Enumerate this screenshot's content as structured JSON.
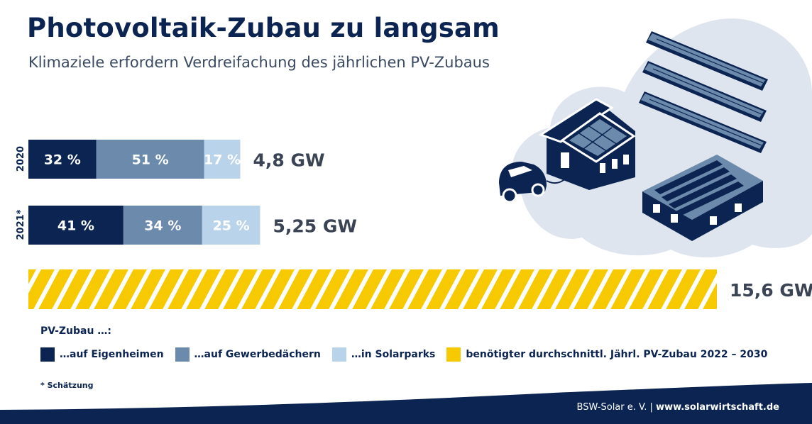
{
  "header": {
    "title": "Photovoltaik-Zubau zu langsam",
    "subtitle": "Klimaziele erfordern Verdreifachung des jährlichen PV-Zubaus"
  },
  "chart_data": {
    "type": "bar",
    "orientation": "horizontal",
    "stacked": true,
    "categories": [
      "2020",
      "2021*",
      ""
    ],
    "rows": [
      {
        "label": "2020",
        "total": 4.8,
        "total_label": "4,8 GW",
        "segments": [
          {
            "series": "…auf Eigenheimen",
            "value": 32,
            "label": "32 %"
          },
          {
            "series": "…auf Gewerbedächern",
            "value": 51,
            "label": "51 %"
          },
          {
            "series": "…in Solarparks",
            "value": 17,
            "label": "17 %"
          }
        ]
      },
      {
        "label": "2021*",
        "total": 5.25,
        "total_label": "5,25 GW",
        "segments": [
          {
            "series": "…auf Eigenheimen",
            "value": 41,
            "label": "41 %"
          },
          {
            "series": "…auf Gewerbedächern",
            "value": 34,
            "label": "34 %"
          },
          {
            "series": "…in Solarparks",
            "value": 25,
            "label": "25 %"
          }
        ]
      },
      {
        "label": "",
        "total": 15.6,
        "total_label": "15,6 GW",
        "segments": [
          {
            "series": "benötigter durchschnittl. Jährl. PV-Zubau 2022 – 2030",
            "value": 100,
            "label": ""
          }
        ]
      }
    ],
    "units": "GW",
    "grid": false,
    "legend_placement": "bottom"
  },
  "legend": {
    "title": "PV-Zubau …:",
    "items": [
      {
        "label": "…auf Eigenheimen",
        "color": "#0b2452"
      },
      {
        "label": "…auf Gewerbedächern",
        "color": "#6c8aab"
      },
      {
        "label": "…in Solarparks",
        "color": "#b8d3ea"
      },
      {
        "label": "benötigter durchschnittl. Jährl. PV-Zubau 2022 – 2030",
        "color": "#f7c900"
      }
    ]
  },
  "footnote": "* Schätzung",
  "footer": {
    "org": "BSW-Solar e. V.",
    "separator": "|",
    "url": "www.solarwirtschaft.de"
  },
  "colors": {
    "navy": "#0b2452",
    "mid_blue": "#6c8aab",
    "light_blue": "#b8d3ea",
    "yellow": "#f7c900",
    "cloud": "#dfe5ee"
  },
  "illustration": {
    "icons": [
      "solar-panel-icon",
      "house-icon",
      "electric-car-icon",
      "commercial-roof-icon"
    ]
  }
}
